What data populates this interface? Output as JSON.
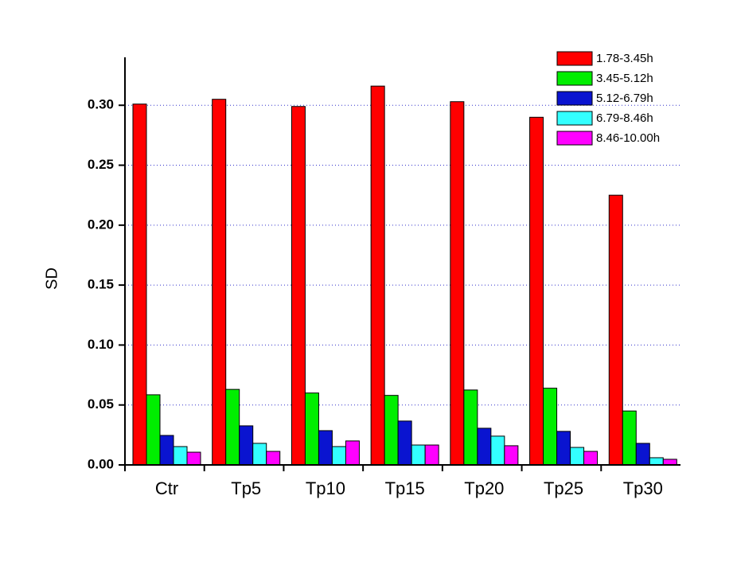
{
  "chart_data": {
    "type": "bar",
    "y_label": "SD",
    "categories": [
      "Ctr",
      "Tp5",
      "Tp10",
      "Tp15",
      "Tp20",
      "Tp25",
      "Tp30"
    ],
    "series": [
      {
        "name": "1.78-3.45h",
        "color": "#ff0000",
        "values": [
          0.301,
          0.305,
          0.299,
          0.316,
          0.303,
          0.29,
          0.225
        ]
      },
      {
        "name": "3.45-5.12h",
        "color": "#00ee00",
        "values": [
          0.0585,
          0.063,
          0.06,
          0.058,
          0.0625,
          0.064,
          0.045
        ]
      },
      {
        "name": "5.12-6.79h",
        "color": "#0a14d0",
        "values": [
          0.0246,
          0.0326,
          0.0286,
          0.0366,
          0.0306,
          0.028,
          0.018
        ]
      },
      {
        "name": "6.79-8.46h",
        "color": "#33ffff",
        "values": [
          0.0153,
          0.018,
          0.0153,
          0.0166,
          0.024,
          0.0146,
          0.006
        ]
      },
      {
        "name": "8.46-10.00h",
        "color": "#ff00ff",
        "values": [
          0.0106,
          0.0113,
          0.02,
          0.0166,
          0.016,
          0.0113,
          0.0047
        ]
      }
    ],
    "ylim": [
      0,
      0.34
    ],
    "yticks": [
      {
        "value": 0,
        "label": "0.00"
      },
      {
        "value": 0.05,
        "label": "0.05"
      },
      {
        "value": 0.1,
        "label": "0.10"
      },
      {
        "value": 0.15,
        "label": "0.15"
      },
      {
        "value": 0.2,
        "label": "0.20"
      },
      {
        "value": 0.25,
        "label": "0.25"
      },
      {
        "value": 0.3,
        "label": "0.30"
      }
    ],
    "grid": true,
    "legend": "top-right"
  }
}
